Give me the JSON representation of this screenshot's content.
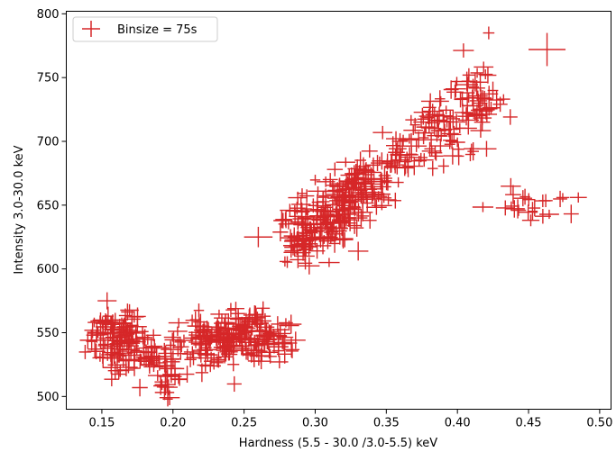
{
  "chart_data": {
    "type": "scatter",
    "xlabel": "Hardness (5.5 - 30.0 /3.0-5.5) keV",
    "ylabel": "Intensity 3.0-30.0 keV",
    "xlim": [
      0.125,
      0.508
    ],
    "ylim": [
      490,
      802
    ],
    "x_ticks": [
      0.15,
      0.2,
      0.25,
      0.3,
      0.35,
      0.4,
      0.45,
      0.5
    ],
    "x_tick_labels": [
      "0.15",
      "0.20",
      "0.25",
      "0.30",
      "0.35",
      "0.40",
      "0.45",
      "0.50"
    ],
    "y_ticks": [
      500,
      550,
      600,
      650,
      700,
      750,
      800
    ],
    "y_tick_labels": [
      "500",
      "550",
      "600",
      "650",
      "700",
      "750",
      "800"
    ],
    "grid": false,
    "legend_position": "top-left",
    "color": "#d62728",
    "series": [
      {
        "name": "Binsize = 75s",
        "clusters": [
          {
            "cx": 0.16,
            "cy": 545,
            "sx": 0.01,
            "sy": 12,
            "n": 110
          },
          {
            "cx": 0.185,
            "cy": 530,
            "sx": 0.008,
            "sy": 10,
            "n": 40
          },
          {
            "cx": 0.2,
            "cy": 515,
            "sx": 0.006,
            "sy": 8,
            "n": 25
          },
          {
            "cx": 0.225,
            "cy": 545,
            "sx": 0.012,
            "sy": 10,
            "n": 90
          },
          {
            "cx": 0.25,
            "cy": 550,
            "sx": 0.012,
            "sy": 10,
            "n": 100
          },
          {
            "cx": 0.27,
            "cy": 545,
            "sx": 0.008,
            "sy": 8,
            "n": 30
          },
          {
            "cx": 0.29,
            "cy": 625,
            "sx": 0.008,
            "sy": 12,
            "n": 60
          },
          {
            "cx": 0.31,
            "cy": 640,
            "sx": 0.01,
            "sy": 12,
            "n": 110
          },
          {
            "cx": 0.33,
            "cy": 665,
            "sx": 0.01,
            "sy": 12,
            "n": 100
          },
          {
            "cx": 0.36,
            "cy": 685,
            "sx": 0.008,
            "sy": 10,
            "n": 35
          },
          {
            "cx": 0.385,
            "cy": 705,
            "sx": 0.01,
            "sy": 12,
            "n": 55
          },
          {
            "cx": 0.41,
            "cy": 730,
            "sx": 0.01,
            "sy": 15,
            "n": 65
          },
          {
            "cx": 0.455,
            "cy": 648,
            "sx": 0.015,
            "sy": 7,
            "n": 22
          }
        ],
        "extra_points": [
          {
            "x": 0.463,
            "y": 772,
            "ex": 0.013,
            "ey": 13
          },
          {
            "x": 0.485,
            "y": 656,
            "ex": 0.006,
            "ey": 4
          },
          {
            "x": 0.422,
            "y": 785,
            "ex": 0.004,
            "ey": 5
          },
          {
            "x": 0.26,
            "y": 625,
            "ex": 0.01,
            "ey": 8
          },
          {
            "x": 0.34,
            "y": 658,
            "ex": 0.008,
            "ey": 6
          },
          {
            "x": 0.395,
            "y": 706,
            "ex": 0.006,
            "ey": 8
          }
        ]
      }
    ]
  }
}
